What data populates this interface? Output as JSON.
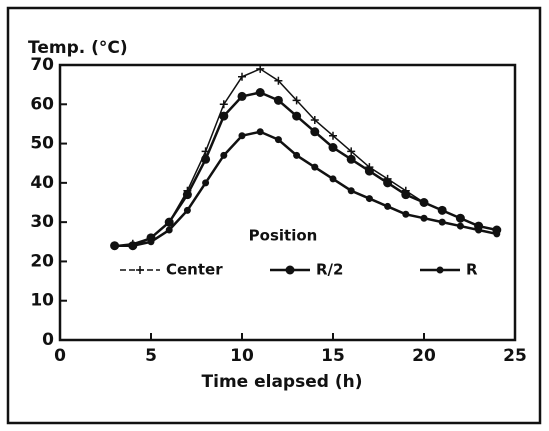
{
  "chart_data": {
    "type": "line",
    "ylabel": "Temp. (°C)",
    "xlabel": "Time elapsed (h)",
    "legend_title": "Position",
    "x": [
      3,
      4,
      5,
      6,
      7,
      8,
      9,
      10,
      11,
      12,
      13,
      14,
      15,
      16,
      17,
      18,
      19,
      20,
      21,
      22,
      23,
      24
    ],
    "series": [
      {
        "name": "Center",
        "color": "#111111",
        "marker": "cross",
        "values": [
          24,
          24.5,
          26,
          30,
          38,
          48,
          60,
          67,
          69,
          66,
          61,
          56,
          52,
          48,
          44,
          41,
          38,
          35,
          33,
          31,
          29,
          28
        ]
      },
      {
        "name": "R/2",
        "color": "#111111",
        "marker": "circle",
        "values": [
          24,
          24,
          26,
          30,
          37,
          46,
          57,
          62,
          63,
          61,
          57,
          53,
          49,
          46,
          43,
          40,
          37,
          35,
          33,
          31,
          29,
          28
        ]
      },
      {
        "name": "R",
        "color": "#111111",
        "marker": "dot",
        "values": [
          24,
          24,
          25,
          28,
          33,
          40,
          47,
          52,
          53,
          51,
          47,
          44,
          41,
          38,
          36,
          34,
          32,
          31,
          30,
          29,
          28,
          27
        ]
      }
    ],
    "xlim": [
      0,
      25
    ],
    "xticks": [
      0,
      5,
      10,
      15,
      20,
      25
    ],
    "ylim": [
      0,
      70
    ],
    "yticks": [
      0,
      10,
      20,
      30,
      40,
      50,
      60,
      70
    ],
    "grid": false
  }
}
